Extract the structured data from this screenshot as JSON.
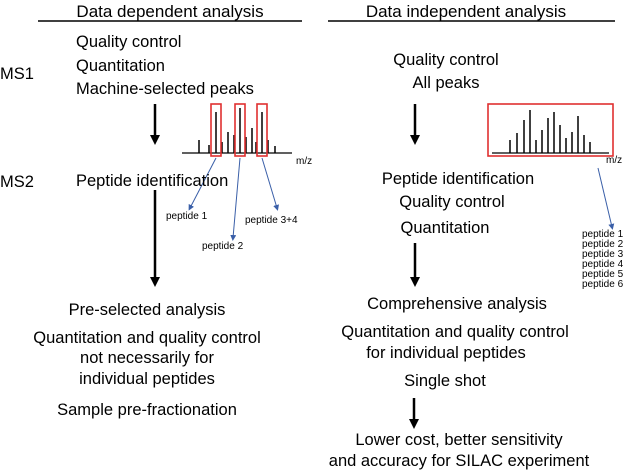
{
  "dda": {
    "heading": "Data dependent analysis",
    "ms1_label": "MS1",
    "ms2_label": "MS2",
    "ms1_items": [
      "Quality control",
      "Quantitation",
      "Machine-selected peaks"
    ],
    "ms2_item": "Peptide identification",
    "axis_label": "m/z",
    "peptide_labels": [
      "peptide 1",
      "peptide 2",
      "peptide 3+4"
    ],
    "result_title": "Pre-selected analysis",
    "result_lines": [
      "Quantitation and quality control",
      "not necessarily for",
      "individual peptides"
    ],
    "result_last": "Sample pre-fractionation"
  },
  "dia": {
    "heading": "Data independent analysis",
    "ms1_items": [
      "Quality control",
      "All peaks"
    ],
    "ms2_items": [
      "Peptide identification",
      "Quality control",
      "Quantitation"
    ],
    "axis_label": "m/z",
    "peptide_list": [
      "peptide 1",
      "peptide 2",
      "peptide 3",
      "peptide 4",
      "peptide 5",
      "peptide 6"
    ],
    "result_title": "Comprehensive analysis",
    "result_lines": [
      "Quantitation and quality control",
      "for individual peptides"
    ],
    "result_mid": "Single shot",
    "final_lines": [
      "Lower cost, better sensitivity",
      "and accuracy for SILAC experiment"
    ]
  },
  "colors": {
    "highlight": "#e03030",
    "pointer": "#3a5fa8",
    "text": "#000000"
  }
}
